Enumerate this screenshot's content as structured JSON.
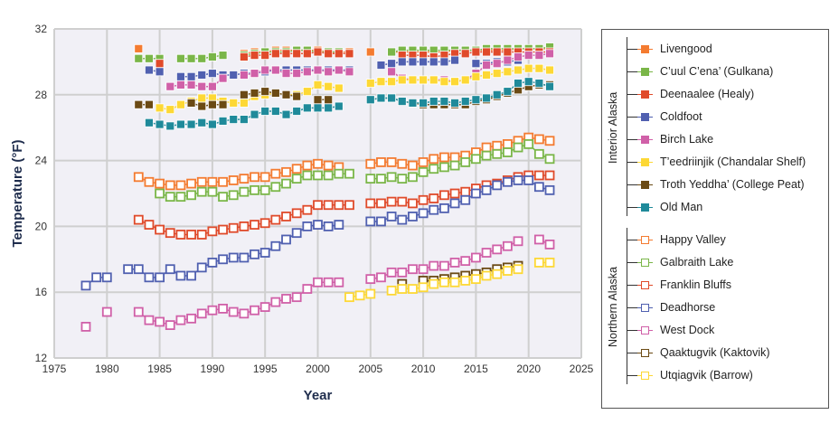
{
  "chart_data": {
    "type": "line",
    "xlabel": "Year",
    "ylabel": "Temperature (°F)",
    "xlim": [
      1975,
      2025
    ],
    "ylim": [
      12,
      32
    ],
    "xticks": [
      1975,
      1980,
      1985,
      1990,
      1995,
      2000,
      2005,
      2010,
      2015,
      2020,
      2025
    ],
    "yticks": [
      12,
      16,
      20,
      24,
      28,
      32
    ],
    "grid": true,
    "legend_placement": "right",
    "groups": [
      {
        "name": "Interior Alaska",
        "marker": "filled-square",
        "series": [
          0,
          1,
          2,
          3,
          4,
          5,
          6,
          7
        ]
      },
      {
        "name": "Northern Alaska",
        "marker": "open-square",
        "series": [
          8,
          9,
          10,
          11,
          12,
          13,
          14
        ]
      }
    ],
    "series": [
      {
        "name": "Livengood",
        "color": "#f47b30",
        "filled": true,
        "segments": [
          {
            "start": 1983,
            "values": [
              30.8
            ]
          },
          {
            "start": 1993,
            "values": [
              30.5,
              30.6,
              30.6,
              30.7,
              30.7,
              30.7,
              30.7,
              30.7,
              30.6,
              30.6,
              30.6
            ]
          },
          {
            "start": 2005,
            "values": [
              30.6
            ]
          },
          {
            "start": 2007,
            "values": [
              30.6,
              30.6,
              30.6,
              30.6,
              30.6,
              30.6,
              30.7,
              30.7,
              30.7,
              30.7,
              30.7,
              30.7,
              30.8,
              30.8,
              30.8,
              30.8
            ]
          }
        ]
      },
      {
        "name": "C’uul C’ena’ (Gulkana)",
        "color": "#7ab648",
        "filled": true,
        "segments": [
          {
            "start": 1983,
            "values": [
              30.2,
              30.2,
              30.2
            ]
          },
          {
            "start": 1987,
            "values": [
              30.2,
              30.2,
              30.2,
              30.3,
              30.4
            ]
          },
          {
            "start": 1993,
            "values": [
              30.4,
              30.5,
              30.6,
              30.6,
              30.6,
              30.7,
              30.7,
              30.6,
              30.6,
              30.6
            ]
          },
          {
            "start": 2007,
            "values": [
              30.6,
              30.7,
              30.7,
              30.7,
              30.7,
              30.7,
              30.7,
              30.7,
              30.7,
              30.8,
              30.8,
              30.8,
              30.8,
              30.8,
              30.8,
              30.9
            ]
          }
        ]
      },
      {
        "name": "Deenaalee (Healy)",
        "color": "#e04a2a",
        "filled": true,
        "segments": [
          {
            "start": 1985,
            "values": [
              29.9
            ]
          },
          {
            "start": 1993,
            "values": [
              30.3,
              30.4,
              30.4,
              30.5,
              30.5,
              30.5,
              30.5,
              30.6,
              30.5,
              30.5,
              30.5
            ]
          },
          {
            "start": 2008,
            "values": [
              30.4,
              30.4,
              30.4,
              30.3,
              30.4,
              30.5,
              30.5,
              30.6,
              30.6,
              30.6,
              30.6,
              30.6,
              30.6,
              30.6,
              30.6
            ]
          }
        ]
      },
      {
        "name": "Coldfoot",
        "color": "#5060b0",
        "filled": true,
        "segments": [
          {
            "start": 1984,
            "values": [
              29.5,
              29.4
            ]
          },
          {
            "start": 1987,
            "values": [
              29.1,
              29.1,
              29.2,
              29.3,
              29.2,
              29.2,
              29.3,
              29.3,
              29.4,
              29.5,
              29.5,
              29.5,
              29.5,
              29.5,
              29.5,
              29.5,
              29.5
            ]
          },
          {
            "start": 2006,
            "values": [
              29.8,
              29.9,
              30.0,
              30.0,
              30.0,
              30.0,
              30.0,
              30.1
            ]
          },
          {
            "start": 2015,
            "values": [
              29.9,
              29.9,
              30.0,
              30.0,
              30.1
            ]
          }
        ]
      },
      {
        "name": "Birch Lake",
        "color": "#d060a8",
        "filled": true,
        "segments": [
          {
            "start": 1986,
            "values": [
              28.5,
              28.6,
              28.6,
              28.5,
              28.5,
              29.0
            ]
          },
          {
            "start": 1993,
            "values": [
              29.2,
              29.3,
              29.5,
              29.5,
              29.3,
              29.3,
              29.4,
              29.5,
              29.4,
              29.5,
              29.4
            ]
          },
          {
            "start": 2007,
            "values": [
              29.4,
              29.0,
              28.9,
              28.9,
              28.9,
              28.9,
              28.8,
              28.9,
              29.3,
              29.8,
              29.9,
              30.1,
              30.3,
              30.4,
              30.4,
              30.5
            ]
          }
        ]
      },
      {
        "name": "T’eedriinjik (Chandalar Shelf)",
        "color": "#fdd835",
        "filled": true,
        "segments": [
          {
            "start": 1985,
            "values": [
              27.2,
              27.1,
              27.4,
              27.6,
              27.8,
              27.8,
              27.6,
              27.5,
              27.5,
              27.9,
              28.0,
              28.1,
              28.0,
              28.0,
              28.2,
              28.6,
              28.5,
              28.4
            ]
          },
          {
            "start": 2005,
            "values": [
              28.7,
              28.8,
              28.8,
              28.9,
              28.9,
              28.9,
              28.9,
              28.8,
              28.8,
              28.9,
              29.1,
              29.2,
              29.3,
              29.4,
              29.5,
              29.6,
              29.6,
              29.5
            ]
          }
        ]
      },
      {
        "name": "Troth Yeddha’ (College Peat)",
        "color": "#6b4a14",
        "filled": true,
        "segments": [
          {
            "start": 1983,
            "values": [
              27.4,
              27.4
            ]
          },
          {
            "start": 1988,
            "values": [
              27.5,
              27.3,
              27.4,
              27.4
            ]
          },
          {
            "start": 1993,
            "values": [
              28.0,
              28.1,
              28.2,
              28.1,
              28.0,
              27.9
            ]
          },
          {
            "start": 2000,
            "values": [
              27.7,
              27.7
            ]
          },
          {
            "start": 2005,
            "values": [
              27.7,
              27.8,
              27.8,
              27.6,
              27.5,
              27.4,
              27.4,
              27.4,
              27.4,
              27.4,
              27.6,
              27.7,
              27.9,
              28.1,
              28.3,
              28.5,
              28.6,
              28.6
            ]
          }
        ]
      },
      {
        "name": "Old Man",
        "color": "#1f8a9a",
        "filled": true,
        "segments": [
          {
            "start": 1984,
            "values": [
              26.3,
              26.2,
              26.1,
              26.2,
              26.2,
              26.3,
              26.2,
              26.4,
              26.5,
              26.5,
              26.8,
              27.0,
              27.0,
              26.8,
              27.0,
              27.2,
              27.2,
              27.2,
              27.3
            ]
          },
          {
            "start": 2005,
            "values": [
              27.7,
              27.8,
              27.8,
              27.6,
              27.5,
              27.5,
              27.6,
              27.6,
              27.5,
              27.6,
              27.7,
              27.8,
              28.0,
              28.2,
              28.7,
              28.8,
              28.7,
              28.5
            ]
          }
        ]
      },
      {
        "name": "Happy Valley",
        "color": "#f47b30",
        "filled": false,
        "segments": [
          {
            "start": 1983,
            "values": [
              23.0,
              22.7,
              22.6,
              22.5,
              22.5,
              22.6,
              22.7,
              22.7,
              22.7,
              22.8,
              22.9,
              23.0,
              23.0,
              23.2,
              23.3,
              23.5,
              23.7,
              23.8,
              23.7,
              23.6
            ]
          },
          {
            "start": 2005,
            "values": [
              23.8,
              23.9,
              23.9,
              23.8,
              23.7,
              23.9,
              24.1,
              24.2,
              24.2,
              24.3,
              24.5,
              24.8,
              24.9,
              25.0,
              25.2,
              25.4,
              25.3,
              25.2
            ]
          }
        ]
      },
      {
        "name": "Galbraith Lake",
        "color": "#7ab648",
        "filled": false,
        "segments": [
          {
            "start": 1985,
            "values": [
              22.0,
              21.8,
              21.8,
              21.9,
              22.1,
              22.1,
              21.8,
              21.9,
              22.1,
              22.2,
              22.2,
              22.4,
              22.6,
              22.9,
              23.1,
              23.1,
              23.1,
              23.2,
              23.2
            ]
          },
          {
            "start": 2005,
            "values": [
              22.9,
              22.9,
              23.0,
              22.9,
              23.0,
              23.3,
              23.5,
              23.6,
              23.7,
              23.9,
              24.1,
              24.3,
              24.4,
              24.5,
              24.8,
              25.0,
              24.4,
              24.1
            ]
          }
        ]
      },
      {
        "name": "Franklin Bluffs",
        "color": "#e04a2a",
        "filled": false,
        "segments": [
          {
            "start": 1983,
            "values": [
              20.4,
              20.1,
              19.8,
              19.6,
              19.5,
              19.5,
              19.5,
              19.7,
              19.8,
              19.9,
              20.0,
              20.1,
              20.2,
              20.4,
              20.6,
              20.8,
              21.0,
              21.3,
              21.3,
              21.3,
              21.3
            ]
          },
          {
            "start": 2005,
            "values": [
              21.4,
              21.4,
              21.5,
              21.5,
              21.4,
              21.6,
              21.7,
              21.9,
              22.0,
              22.1,
              22.3,
              22.5,
              22.6,
              22.8,
              23.0,
              23.1,
              23.1,
              23.1
            ]
          }
        ]
      },
      {
        "name": "Deadhorse",
        "color": "#5060b0",
        "filled": false,
        "segments": [
          {
            "start": 1978,
            "values": [
              16.4,
              16.9,
              16.9
            ]
          },
          {
            "start": 1982,
            "values": [
              17.4,
              17.4,
              16.9,
              16.9,
              17.4,
              17.0,
              17.0,
              17.5,
              17.8,
              18.0,
              18.1,
              18.1,
              18.3,
              18.4,
              18.8,
              19.2,
              19.6,
              20.0,
              20.1,
              20.0,
              20.1
            ]
          },
          {
            "start": 2005,
            "values": [
              20.3,
              20.3,
              20.6,
              20.4,
              20.6,
              20.8,
              21.0,
              21.1,
              21.4,
              21.6,
              22.0,
              22.2,
              22.5,
              22.7,
              22.8,
              22.8,
              22.4,
              22.2
            ]
          }
        ]
      },
      {
        "name": "West Dock",
        "color": "#d060a8",
        "filled": false,
        "segments": [
          {
            "start": 1978,
            "values": [
              13.9
            ]
          },
          {
            "start": 1980,
            "values": [
              14.8
            ]
          },
          {
            "start": 1983,
            "values": [
              14.8,
              14.3,
              14.2,
              14.0,
              14.3,
              14.4,
              14.7,
              14.9,
              15.0,
              14.8,
              14.7,
              14.9,
              15.1,
              15.4,
              15.6,
              15.7,
              16.2,
              16.6,
              16.6,
              16.6
            ]
          },
          {
            "start": 2005,
            "values": [
              16.8,
              16.9,
              17.2,
              17.2,
              17.4,
              17.4,
              17.6,
              17.6,
              17.8,
              17.9,
              18.1,
              18.4,
              18.6,
              18.8,
              19.1
            ]
          },
          {
            "start": 2021,
            "values": [
              19.2,
              18.9
            ]
          }
        ]
      },
      {
        "name": "Qaaktugvik (Kaktovik)",
        "color": "#6b4a14",
        "filled": false,
        "segments": [
          {
            "start": 2008,
            "values": [
              16.5
            ]
          },
          {
            "start": 2010,
            "values": [
              16.7,
              16.7,
              16.8,
              16.9,
              17.0,
              17.1,
              17.2,
              17.4,
              17.5,
              17.6
            ]
          }
        ]
      },
      {
        "name": "Utqiagvik (Barrow)",
        "color": "#fdd835",
        "filled": false,
        "segments": [
          {
            "start": 2003,
            "values": [
              15.7,
              15.8,
              15.9
            ]
          },
          {
            "start": 2007,
            "values": [
              16.1,
              16.2,
              16.2,
              16.3,
              16.5,
              16.6,
              16.6,
              16.7,
              16.8,
              17.0,
              17.1,
              17.3,
              17.4
            ]
          },
          {
            "start": 2021,
            "values": [
              17.8,
              17.8
            ]
          }
        ]
      }
    ]
  }
}
